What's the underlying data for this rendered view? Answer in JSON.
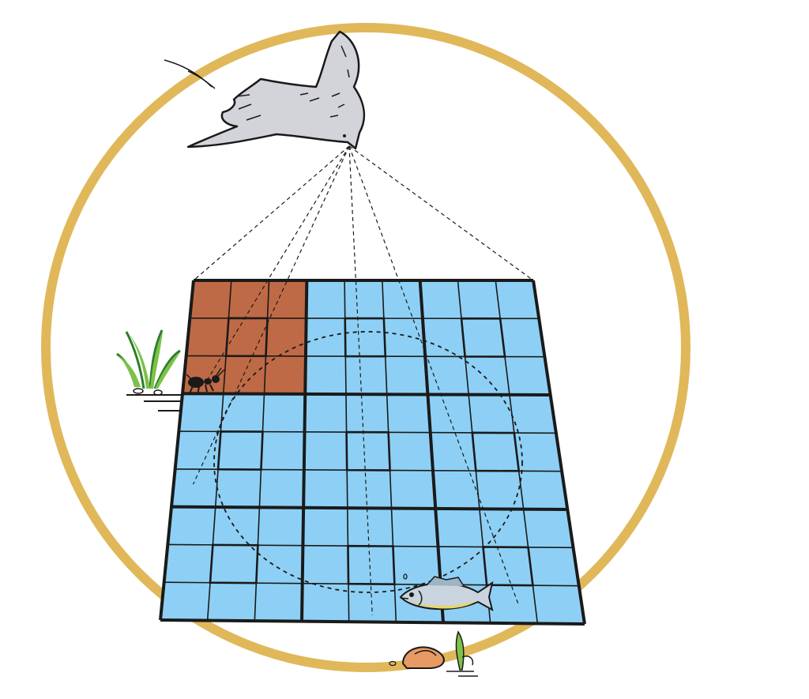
{
  "scene": {
    "description_label": "",
    "grid": {
      "major_rows": 3,
      "major_cols": 3,
      "minor_per_major": 3
    },
    "highlighted_block": {
      "row": 0,
      "col": 0
    },
    "colors": {
      "ring": "#E0B85A",
      "water": "#8ED0F5",
      "highlight": "#BF6A46",
      "grid_line": "#1a1a1a",
      "bird": "#D3D4DA",
      "plant": "#7CC24A",
      "fish_body": "#C9D4DE",
      "fish_belly": "#E8D66A",
      "shell": "#E79A63"
    },
    "icons": [
      "bird-icon",
      "ant-icon",
      "fish-icon",
      "grass-icon",
      "shell-icon",
      "sprout-icon"
    ]
  }
}
